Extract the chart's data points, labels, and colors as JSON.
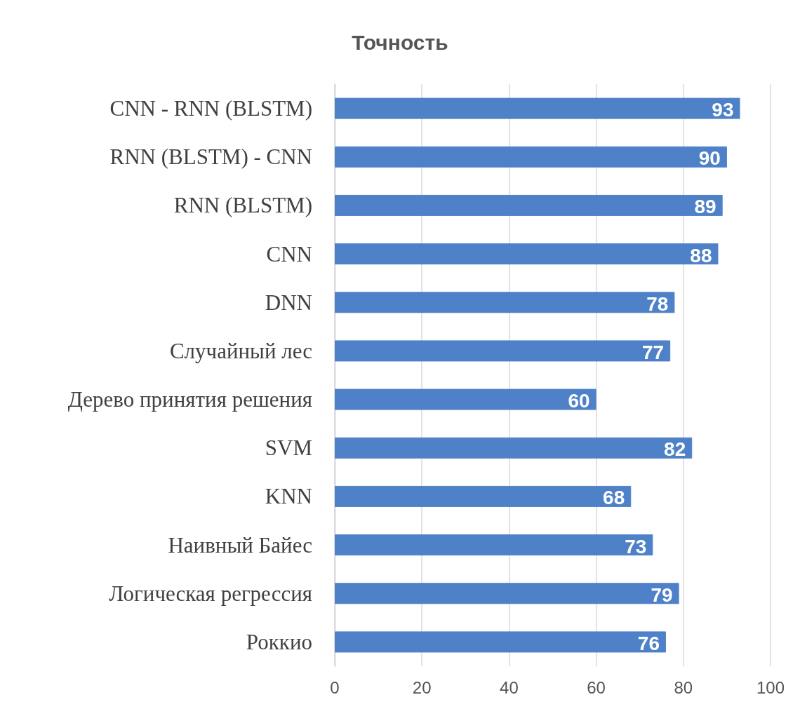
{
  "chart_data": {
    "type": "bar",
    "orientation": "horizontal",
    "title": "Точность",
    "categories": [
      "CNN - RNN (BLSTM)",
      "RNN (BLSTM) - CNN",
      "RNN (BLSTM)",
      "CNN",
      "DNN",
      "Случайный лес",
      "Дерево принятия решения",
      "SVM",
      "KNN",
      "Наивный Байес",
      "Логическая регрессия",
      "Роккио"
    ],
    "values": [
      93,
      90,
      89,
      88,
      78,
      77,
      60,
      82,
      68,
      73,
      79,
      76
    ],
    "color": "#4f81c9",
    "xlim": [
      0,
      100
    ],
    "xticks": [
      0,
      20,
      40,
      60,
      80,
      100
    ],
    "grid": "x",
    "data_labels": true
  }
}
